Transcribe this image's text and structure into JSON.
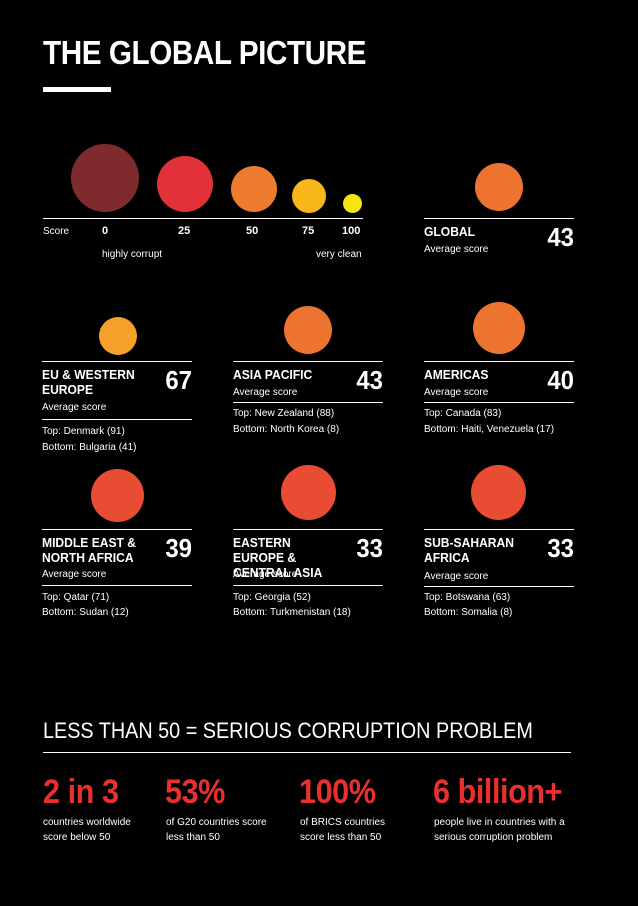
{
  "title": "THE GLOBAL PICTURE",
  "scale": {
    "label": "Score",
    "ticks": [
      "0",
      "25",
      "50",
      "75",
      "100"
    ],
    "left_note": "highly corrupt",
    "right_note": "very clean",
    "colors": [
      "#7f2b2d",
      "#e3313a",
      "#ed7c2e",
      "#f9b71b",
      "#f5e611"
    ]
  },
  "global": {
    "name": "GLOBAL",
    "avg_label": "Average score",
    "score": "43",
    "color": "#ec7430"
  },
  "regions": [
    {
      "name": "EU & WESTERN EUROPE",
      "avg_label": "Average score",
      "score": "67",
      "top": "Top: Denmark (91)",
      "bottom": "Bottom: Bulgaria (41)",
      "color": "#f5a02b"
    },
    {
      "name": "ASIA PACIFIC",
      "avg_label": "Average score",
      "score": "43",
      "top": "Top: New Zealand (88)",
      "bottom": "Bottom: North Korea (8)",
      "color": "#ec7430"
    },
    {
      "name": "AMERICAS",
      "avg_label": "Average score",
      "score": "40",
      "top": "Top: Canada (83)",
      "bottom": "Bottom: Haiti, Venezuela (17)",
      "color": "#ec7430"
    },
    {
      "name": "MIDDLE EAST & NORTH AFRICA",
      "avg_label": "Average score",
      "score": "39",
      "top": "Top: Qatar (71)",
      "bottom": "Bottom: Sudan (12)",
      "color": "#e84c33"
    },
    {
      "name": "EASTERN EUROPE & CENTRAL ASIA",
      "avg_label": "Average score",
      "score": "33",
      "top": "Top: Georgia (52)",
      "bottom": "Bottom: Turkmenistan (18)",
      "color": "#e84c33"
    },
    {
      "name": "SUB-SAHARAN AFRICA",
      "avg_label": "Average score",
      "score": "33",
      "top": "Top: Botswana (63)",
      "bottom": "Bottom: Somalia (8)",
      "color": "#e84c33"
    }
  ],
  "subheading": "LESS THAN 50 = SERIOUS CORRUPTION PROBLEM",
  "stats": [
    {
      "big": "2 in 3",
      "small1": "countries worldwide",
      "small2": "score below 50"
    },
    {
      "big": "53%",
      "small1": "of G20 countries score",
      "small2": "less than 50"
    },
    {
      "big": "100%",
      "small1": "of BRICS countries",
      "small2": "score less than 50"
    },
    {
      "big": "6 billion+",
      "small1": "people live in countries with a",
      "small2": "serious corruption problem"
    }
  ],
  "accent": "#e8312e"
}
